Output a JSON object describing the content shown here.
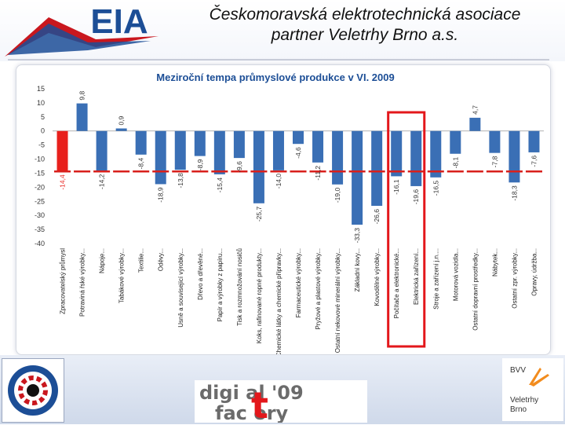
{
  "header": {
    "title_line1": "Českomoravská elektrotechnická asociace",
    "title_line2": "partner Veletrhy Brno a.s."
  },
  "logos": {
    "eia": "EIA",
    "digital_factory_line1": "digi  al '09",
    "digital_factory_line2": "fac  ory",
    "digital_factory_t": "t",
    "bvv_line1": "BVV",
    "bvv_line2": "Veletrhy",
    "bvv_line3": "Brno"
  },
  "colors": {
    "bar_blue": "#3a6fb5",
    "bar_red": "#e8201c",
    "avg_line": "#d8201c",
    "highlight_box": "#e3171b",
    "title_blue": "#1c4e96"
  },
  "chart_data": {
    "type": "bar",
    "title": "Meziroční tempa průmyslové produkce v VI. 2009",
    "ylim": [
      -40,
      15
    ],
    "yticks": [
      15,
      10,
      5,
      0,
      -5,
      -10,
      -15,
      -20,
      -25,
      -30,
      -35,
      -40
    ],
    "categories": [
      "Zpracovatelský průmysl",
      "Potraviná řské výrobky...",
      "Nápoje...",
      "Tabákové výrobky...",
      "Textilie...",
      "Oděvy...",
      "Usně a související výrobky...",
      "Dřevo a dřevěné...",
      "Papír a výrobky z papíru...",
      "Tisk a rozmnožování nosičů",
      "Koks, rafinované ropné produkty...",
      "Chemické látky a chemické přípravky...",
      "Farmaceutické výrobky...",
      "Pryžové a plastové výrobky...",
      "Ostatní nekovové minerální výrobky...",
      "Základní kovy...",
      "Kovodělné výrobky...",
      "Počítače a elektronické...",
      "Elektrická zařízení...",
      "Stroje a zařízení j.n....",
      "Motorová vozidla...",
      "Ostatní dopravní prostředky...",
      "Nábytek...",
      "Ostatní zpr. výrobky...",
      "Opravy, údržba..."
    ],
    "values": [
      -14.4,
      9.8,
      -14.2,
      0.9,
      -8.4,
      -18.9,
      -13.8,
      -8.9,
      -15.4,
      -9.6,
      -25.7,
      -14.0,
      -4.6,
      -11.2,
      -19.0,
      -33.3,
      -26.6,
      -16.1,
      -19.6,
      -16.5,
      -8.1,
      4.7,
      -7.8,
      -18.3,
      -7.6
    ],
    "value_labels": [
      "-14,4",
      "9,8",
      "-14,2",
      "0,9",
      "-8,4",
      "-18,9",
      "-13,8",
      "-8,9",
      "-15,4",
      "-9,6",
      "-25,7",
      "-14,0",
      "-4,6",
      "-11,2",
      "-19,0",
      "-33,3",
      "-26,6",
      "-16,1",
      "-19,6",
      "-16,5",
      "-8,1",
      "4,7",
      "-7,8",
      "-18,3",
      "-7,6"
    ],
    "highlight_indices": [
      0
    ],
    "reference_line": -14.4,
    "boxed_categories": [
      17,
      18
    ],
    "grid": false,
    "legend": "none"
  }
}
